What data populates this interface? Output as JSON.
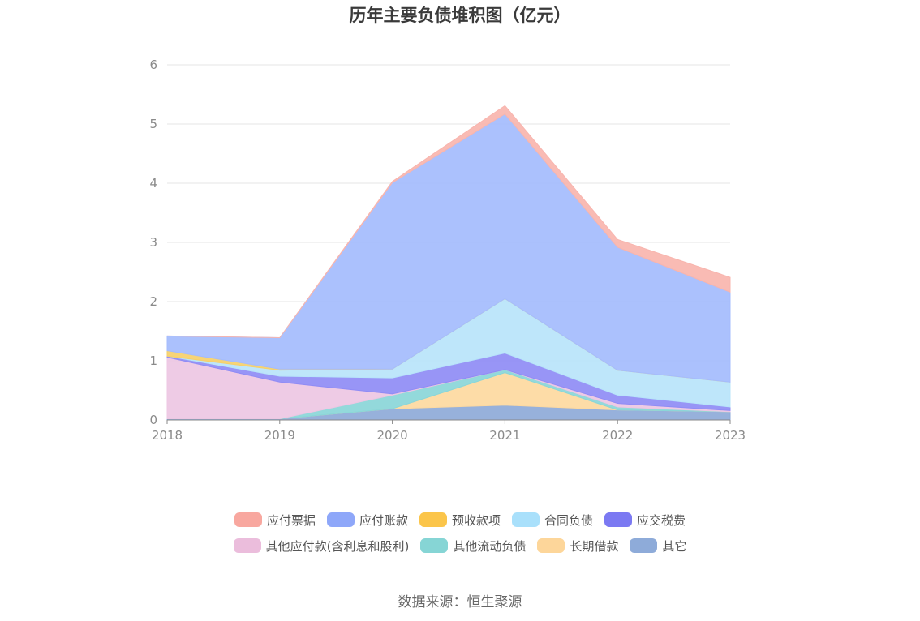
{
  "chart_data": {
    "type": "area",
    "stacked": true,
    "title": "历年主要负债堆积图（亿元）",
    "x": [
      "2018",
      "2019",
      "2020",
      "2021",
      "2022",
      "2023"
    ],
    "ylim": [
      0,
      6
    ],
    "yticks": [
      0,
      1,
      2,
      3,
      4,
      5,
      6
    ],
    "grid": true,
    "legend_position": "bottom",
    "series": [
      {
        "name": "其它",
        "color": "#8eaad8",
        "values": [
          0.02,
          0.02,
          0.19,
          0.25,
          0.17,
          0.14
        ]
      },
      {
        "name": "长期借款",
        "color": "#fdd9a0",
        "values": [
          0,
          0,
          0,
          0.55,
          0,
          0
        ]
      },
      {
        "name": "其他流动负债",
        "color": "#8ad6d8",
        "values": [
          0,
          0,
          0.23,
          0.05,
          0.05,
          0
        ]
      },
      {
        "name": "其他应付款(含利息和股利)",
        "color": "#edc7e3",
        "values": [
          1.04,
          0.62,
          0.02,
          0,
          0.06,
          0.02
        ]
      },
      {
        "name": "应交税费",
        "color": "#8f8cf5",
        "values": [
          0.02,
          0.1,
          0.27,
          0.28,
          0.14,
          0.06
        ]
      },
      {
        "name": "合同负债",
        "color": "#b8e4fa",
        "values": [
          0,
          0.1,
          0.15,
          0.92,
          0.42,
          0.42
        ]
      },
      {
        "name": "预收款项",
        "color": "#f6d06a",
        "values": [
          0.09,
          0.02,
          0,
          0,
          0,
          0
        ]
      },
      {
        "name": "应付账款",
        "color": "#a4bcfd",
        "values": [
          0.25,
          0.53,
          3.15,
          3.12,
          2.08,
          1.52
        ]
      },
      {
        "name": "应付票据",
        "color": "#f8b5ae",
        "values": [
          0,
          0,
          0.02,
          0.14,
          0.13,
          0.25
        ]
      }
    ],
    "legend": [
      {
        "name": "应付票据",
        "color": "#f8a79f"
      },
      {
        "name": "应付账款",
        "color": "#8ea7f9"
      },
      {
        "name": "预收款项",
        "color": "#fbc54a"
      },
      {
        "name": "合同负债",
        "color": "#a9e0fb"
      },
      {
        "name": "应交税费",
        "color": "#7b79f2"
      },
      {
        "name": "其他应付款(含利息和股利)",
        "color": "#ebbddc"
      },
      {
        "name": "其他流动负债",
        "color": "#86d5d5"
      },
      {
        "name": "长期借款",
        "color": "#fdd69a"
      },
      {
        "name": "其它",
        "color": "#8eabd9"
      }
    ]
  },
  "source": "数据来源：恒生聚源"
}
